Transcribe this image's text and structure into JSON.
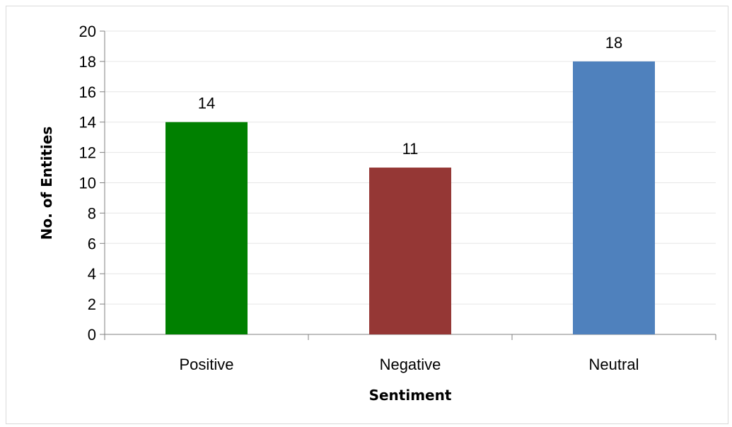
{
  "chart_data": {
    "type": "bar",
    "categories": [
      "Positive",
      "Negative",
      "Neutral"
    ],
    "values": [
      14,
      11,
      18
    ],
    "colors": [
      "#008000",
      "#953735",
      "#4f81bd"
    ],
    "xlabel": "Sentiment",
    "ylabel": "No. of Entities",
    "ylim": [
      0,
      20
    ],
    "yticks": [
      0,
      2,
      4,
      6,
      8,
      10,
      12,
      14,
      16,
      18,
      20
    ],
    "grid": true,
    "data_labels": true
  }
}
